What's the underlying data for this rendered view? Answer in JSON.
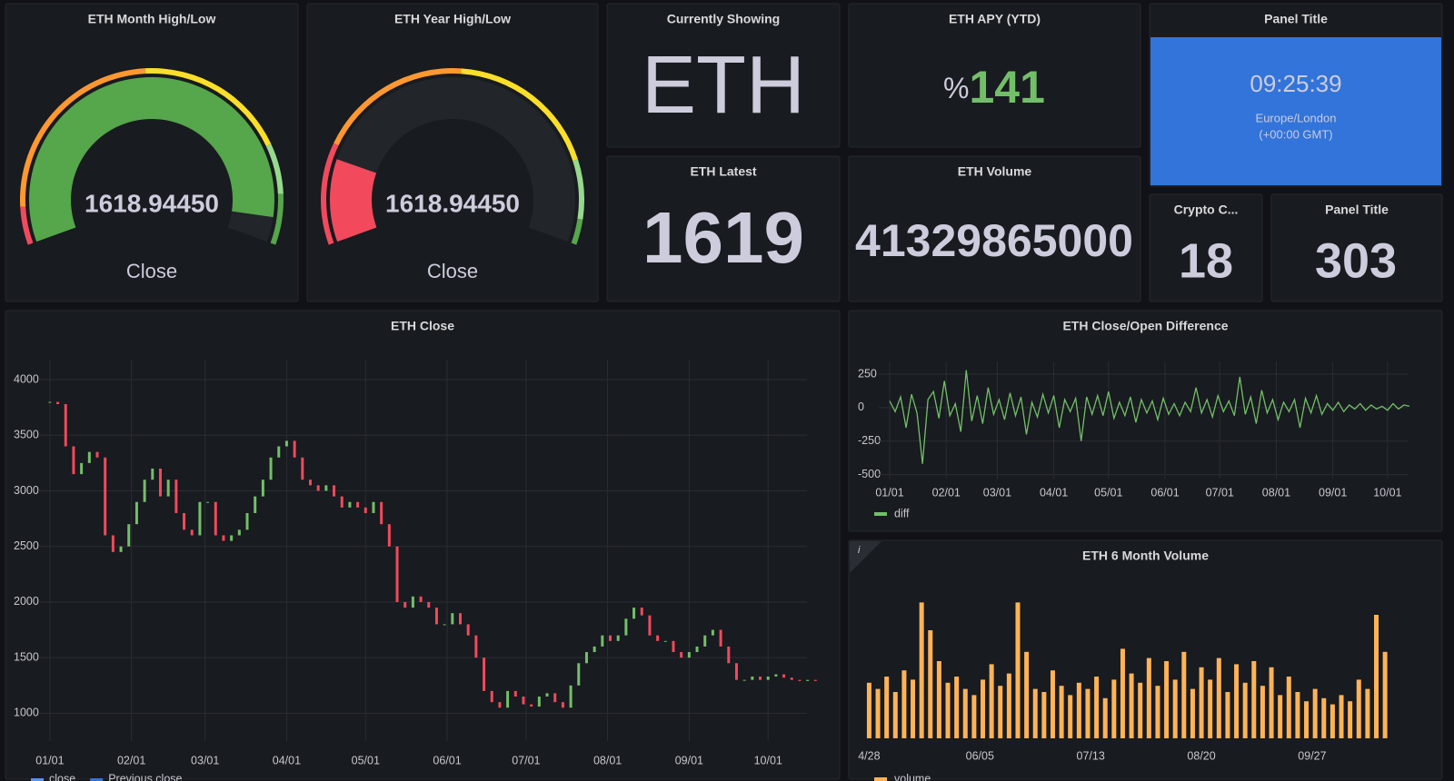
{
  "panels": {
    "month_gauge": {
      "title": "ETH Month High/Low",
      "value": 1618.9445,
      "value_label": "1618.94450",
      "label": "Close",
      "min": 1250,
      "max": 1640,
      "thresholds": [
        {
          "value": 1250,
          "color": "#f2495c"
        },
        {
          "value": 1280,
          "color": "#ff9830"
        },
        {
          "value": 1440,
          "color": "#fade2a"
        },
        {
          "value": 1560,
          "color": "#96d98d"
        },
        {
          "value": 1600,
          "color": "#56a64b"
        }
      ]
    },
    "year_gauge": {
      "title": "ETH Year High/Low",
      "value": 1618.9445,
      "value_label": "1618.94450",
      "label": "Close",
      "min": 1100,
      "max": 4000,
      "thresholds": [
        {
          "value": 1100,
          "color": "#f2495c"
        },
        {
          "value": 1700,
          "color": "#ff9830"
        },
        {
          "value": 2600,
          "color": "#fade2a"
        },
        {
          "value": 3500,
          "color": "#96d98d"
        },
        {
          "value": 3850,
          "color": "#56a64b"
        }
      ]
    },
    "showing": {
      "title": "Currently Showing",
      "text": "ETH",
      "color": "#ccccdc"
    },
    "apy": {
      "title": "ETH APY (YTD)",
      "unit": "%",
      "value": 141,
      "color": "#73bf69"
    },
    "clock": {
      "title": "Panel Title",
      "time": "09:25:39",
      "zone": "Europe/London",
      "offset": "(+00:00 GMT)",
      "color": "#3274d9"
    },
    "latest": {
      "title": "ETH Latest",
      "value": 1619,
      "color": "#73bf69"
    },
    "volume": {
      "title": "ETH Volume",
      "value": 41329865000,
      "color": "#ffb357"
    },
    "crypto": {
      "title": "Crypto C...",
      "value": 18,
      "color": "#5794f2"
    },
    "panel303": {
      "title": "Panel Title",
      "value": 303,
      "color": "#73bf69"
    }
  },
  "chart_data": [
    {
      "type": "candlestick",
      "title": "ETH Close",
      "up_color": "#73bf69",
      "down_color": "#f2495c",
      "x": [
        0,
        3,
        6,
        9,
        12,
        15,
        18,
        21,
        24,
        27,
        30,
        33,
        36,
        39,
        42,
        45,
        48,
        51,
        54,
        57,
        60,
        63,
        66,
        69,
        72,
        75,
        78,
        81,
        84,
        87,
        90,
        93,
        96,
        99,
        102,
        105,
        108,
        111,
        114,
        117,
        120,
        123,
        126,
        129,
        132,
        135,
        138,
        141,
        144,
        147,
        150,
        153,
        156,
        159,
        162,
        165,
        168,
        171,
        174,
        177,
        180,
        183,
        186,
        189,
        192,
        195,
        198,
        201,
        204,
        207,
        210,
        213,
        216,
        219,
        222,
        225,
        228,
        231,
        234,
        237,
        240,
        243,
        246,
        249,
        252,
        255,
        258,
        261,
        264,
        267,
        270,
        273,
        276,
        279,
        282,
        285,
        288,
        291
      ],
      "values": [
        3800,
        3780,
        3400,
        3150,
        3250,
        3350,
        3300,
        2600,
        2450,
        2500,
        2700,
        2900,
        3100,
        3200,
        2950,
        3100,
        2800,
        2650,
        2600,
        2900,
        2900,
        2600,
        2550,
        2600,
        2650,
        2800,
        2950,
        3100,
        3300,
        3400,
        3450,
        3300,
        3100,
        3050,
        3000,
        3050,
        2950,
        2850,
        2900,
        2850,
        2800,
        2900,
        2700,
        2500,
        2000,
        1950,
        2050,
        2000,
        1950,
        1800,
        1800,
        1900,
        1800,
        1700,
        1500,
        1200,
        1100,
        1050,
        1200,
        1150,
        1080,
        1060,
        1150,
        1180,
        1100,
        1050,
        1250,
        1450,
        1550,
        1600,
        1700,
        1650,
        1700,
        1850,
        1950,
        1880,
        1700,
        1650,
        1650,
        1550,
        1500,
        1550,
        1600,
        1700,
        1750,
        1600,
        1450,
        1300,
        1300,
        1330,
        1300,
        1330,
        1350,
        1320,
        1300,
        1290,
        1300,
        1290
      ],
      "legend": [
        {
          "name": "close",
          "color": "#5794f2"
        },
        {
          "name": "Previous close",
          "color": "#3274d9"
        }
      ],
      "xlim": [
        -1,
        294
      ],
      "ylim": [
        750,
        4180
      ],
      "xticks": [
        {
          "value": 0,
          "label": "01/01"
        },
        {
          "value": 31,
          "label": "02/01"
        },
        {
          "value": 59,
          "label": "03/01"
        },
        {
          "value": 90,
          "label": "04/01"
        },
        {
          "value": 120,
          "label": "05/01"
        },
        {
          "value": 151,
          "label": "06/01"
        },
        {
          "value": 181,
          "label": "07/01"
        },
        {
          "value": 212,
          "label": "08/01"
        },
        {
          "value": 243,
          "label": "09/01"
        },
        {
          "value": 273,
          "label": "10/01"
        }
      ],
      "yticks": [
        1000,
        1500,
        2000,
        2500,
        3000,
        3500,
        4000
      ],
      "grid": true
    },
    {
      "type": "line",
      "title": "ETH Close/Open Difference",
      "x": [
        0,
        3,
        6,
        9,
        12,
        15,
        18,
        21,
        24,
        27,
        30,
        33,
        36,
        39,
        42,
        45,
        48,
        51,
        54,
        57,
        60,
        63,
        66,
        69,
        72,
        75,
        78,
        81,
        84,
        87,
        90,
        93,
        96,
        99,
        102,
        105,
        108,
        111,
        114,
        117,
        120,
        123,
        126,
        129,
        132,
        135,
        138,
        141,
        144,
        147,
        150,
        153,
        156,
        159,
        162,
        165,
        168,
        171,
        174,
        177,
        180,
        183,
        186,
        189,
        192,
        195,
        198,
        201,
        204,
        207,
        210,
        213,
        216,
        219,
        222,
        225,
        228,
        231,
        234,
        237,
        240,
        243,
        246,
        249,
        252,
        255,
        258,
        261,
        264,
        267,
        270,
        273,
        276,
        279,
        282,
        285
      ],
      "series": [
        {
          "name": "diff",
          "color": "#73bf69",
          "values": [
            50,
            -30,
            80,
            -150,
            100,
            -40,
            -420,
            60,
            120,
            -80,
            200,
            -60,
            30,
            -180,
            280,
            -100,
            90,
            -120,
            150,
            -50,
            60,
            -90,
            110,
            -60,
            80,
            -200,
            40,
            -70,
            100,
            -40,
            90,
            -150,
            60,
            -30,
            70,
            -250,
            80,
            -50,
            90,
            -60,
            120,
            -80,
            40,
            -60,
            80,
            -110,
            60,
            -40,
            50,
            -90,
            70,
            -50,
            30,
            -60,
            40,
            -30,
            150,
            -40,
            60,
            -70,
            90,
            -30,
            50,
            -60,
            230,
            -50,
            80,
            -120,
            130,
            -40,
            60,
            -90,
            40,
            -30,
            60,
            -150,
            70,
            -40,
            90,
            -50,
            30,
            -20,
            40,
            -30,
            20,
            -10,
            30,
            -20,
            20,
            -10,
            10,
            -20,
            30,
            -10,
            20,
            10
          ]
        }
      ],
      "xlim": [
        -1,
        293
      ],
      "ylim": [
        -530,
        345
      ],
      "xticks": [
        {
          "value": 0,
          "label": "01/01"
        },
        {
          "value": 31,
          "label": "02/01"
        },
        {
          "value": 59,
          "label": "03/01"
        },
        {
          "value": 90,
          "label": "04/01"
        },
        {
          "value": 120,
          "label": "05/01"
        },
        {
          "value": 151,
          "label": "06/01"
        },
        {
          "value": 181,
          "label": "07/01"
        },
        {
          "value": 212,
          "label": "08/01"
        },
        {
          "value": 243,
          "label": "09/01"
        },
        {
          "value": 273,
          "label": "10/01"
        }
      ],
      "yticks": [
        -500,
        -250,
        0,
        250
      ],
      "grid": true
    },
    {
      "type": "bar",
      "title": "ETH 6 Month Volume",
      "x": [
        0,
        3,
        6,
        9,
        12,
        15,
        18,
        21,
        24,
        27,
        30,
        33,
        36,
        39,
        42,
        45,
        48,
        51,
        54,
        57,
        60,
        63,
        66,
        69,
        72,
        75,
        78,
        81,
        84,
        87,
        90,
        93,
        96,
        99,
        102,
        105,
        108,
        111,
        114,
        117,
        120,
        123,
        126,
        129,
        132,
        135,
        138,
        141,
        144,
        147,
        150,
        153,
        156,
        159,
        162,
        165,
        168,
        171,
        174,
        177
      ],
      "series": [
        {
          "name": "volume",
          "color": "#ffb357",
          "values": [
            18000000000.0,
            16000000000.0,
            20000000000.0,
            15000000000.0,
            22000000000.0,
            19000000000.0,
            44000000000.0,
            35000000000.0,
            25000000000.0,
            18000000000.0,
            20000000000.0,
            16000000000.0,
            14000000000.0,
            19000000000.0,
            24000000000.0,
            17000000000.0,
            21000000000.0,
            44000000000.0,
            28000000000.0,
            16000000000.0,
            15000000000.0,
            22000000000.0,
            17000000000.0,
            14000000000.0,
            18000000000.0,
            16000000000.0,
            20000000000.0,
            13000000000.0,
            19000000000.0,
            29000000000.0,
            21000000000.0,
            18000000000.0,
            26000000000.0,
            17000000000.0,
            25000000000.0,
            19000000000.0,
            28000000000.0,
            16000000000.0,
            23000000000.0,
            19000000000.0,
            26000000000.0,
            15000000000.0,
            24000000000.0,
            18000000000.0,
            25000000000.0,
            17000000000.0,
            23000000000.0,
            14000000000.0,
            20000000000.0,
            15000000000.0,
            12000000000.0,
            16000000000.0,
            13000000000.0,
            11000000000.0,
            14000000000.0,
            12000000000.0,
            19000000000.0,
            16000000000.0,
            40000000000.0,
            28000000000.0
          ]
        }
      ],
      "xlim": [
        -2,
        186
      ],
      "ylim": [
        0,
        50000000000.0
      ],
      "xticks": [
        {
          "value": 0,
          "label": "4/28"
        },
        {
          "value": 38,
          "label": "06/05"
        },
        {
          "value": 76,
          "label": "07/13"
        },
        {
          "value": 114,
          "label": "08/20"
        },
        {
          "value": 152,
          "label": "09/27"
        }
      ],
      "grid": false
    }
  ]
}
